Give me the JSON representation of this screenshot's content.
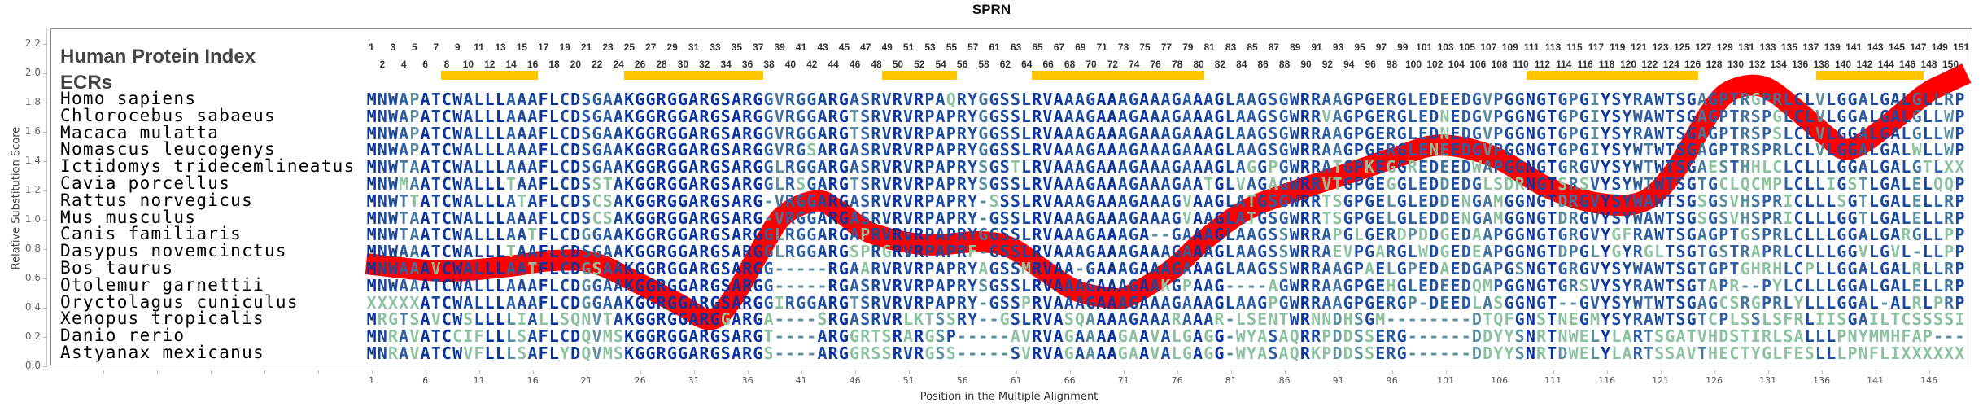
{
  "title": "SPRN",
  "header": {
    "index_label": "Human Protein Index",
    "ecr_label": "ECRs"
  },
  "human_index": [
    1,
    2,
    3,
    4,
    5,
    6,
    7,
    8,
    9,
    10,
    11,
    12,
    13,
    14,
    15,
    16,
    17,
    18,
    19,
    20,
    21,
    22,
    23,
    24,
    25,
    26,
    27,
    28,
    29,
    30,
    31,
    32,
    33,
    34,
    35,
    36,
    37,
    38,
    39,
    40,
    41,
    42,
    43,
    44,
    45,
    46,
    47,
    48,
    49,
    50,
    51,
    52,
    53,
    54,
    55,
    56,
    57,
    58,
    61,
    62,
    63,
    64,
    65,
    66,
    67,
    68,
    69,
    70,
    71,
    72,
    73,
    74,
    75,
    76,
    77,
    78,
    79,
    80,
    81,
    82,
    83,
    84,
    85,
    86,
    87,
    88,
    89,
    90,
    91,
    92,
    93,
    94,
    95,
    96,
    97,
    98,
    99,
    100,
    101,
    102,
    103,
    104,
    105,
    106,
    107,
    108,
    109,
    110,
    111,
    112,
    113,
    114,
    115,
    116,
    117,
    118,
    119,
    120,
    121,
    122,
    123,
    124,
    125,
    126,
    127,
    128,
    129,
    130,
    131,
    132,
    133,
    134,
    135,
    136,
    137,
    138,
    139,
    140,
    141,
    142,
    143,
    144,
    145,
    146,
    147,
    148,
    149,
    150,
    151
  ],
  "ecrs": [
    [
      8,
      16
    ],
    [
      25,
      37
    ],
    [
      49,
      55
    ],
    [
      65,
      80
    ],
    [
      111,
      126
    ],
    [
      138,
      147
    ]
  ],
  "ecr_color": "#ffc600",
  "conservation_colors": [
    "#0833a0",
    "#1a49a0",
    "#2c5ea6",
    "#44769f",
    "#5b8fa0",
    "#8cc2a0"
  ],
  "species": [
    {
      "name": "Homo sapiens",
      "sequence": "MNWAPATCWALLLAAAFLCDSGAAKGGRGGARGSARGGVRGGARGASRVRVRPAQRYGGSSLRVAAAGAAAGAAAGAAAGLAAGSGWRRAAGPGERGLEDEEDGVPGGNGTGPGIYSYRAWTSGAGPTRGPRLCLVLGGALGALGLLRP"
    },
    {
      "name": "Chlorocebus sabaeus",
      "sequence": "MNWAPATCWALLLAAAFLCDSGAAKGGRGGARGSARGGVRGGARGTSRVRVRPAPRYGGSSLRVAAAGAAAGAAAGAAAGLAAGSGWRRVAGPGERGLEDNEDGVPGGNGTGPGIYSYWAWTSGAGPTRSPGLCLVLGGALGALGLLWP"
    },
    {
      "name": "Macaca mulatta",
      "sequence": "MNWAPATCWALLLAAAFLCDSGAAKGGRGGARGSARGGVRGGARGTSRVRVRPAPRYGGSSLRVAAAGAAAGAAAGAAAGLAAGSGWRRAAGPGERGLEDNEDGVPGGNGTGPGIYSYRAWTSGAGPTRSPSLCLVLGGALGALGLLWP"
    },
    {
      "name": "Nomascus leucogenys",
      "sequence": "MNWAPATCWALLLAAAFLCDSGAAKGGRGGARGSARGGVRGSARGASRVRVRPAPRYGGSSLRVAAAGAAAGAAAGAAAGLAAGSGWRRAAGPGERGLENEEDGVPGGNGTGPGIYSYWTWTSGAGPTRSPRLCLVLGGALGALWLLWP"
    },
    {
      "name": "Ictidomys tridecemlineatus",
      "sequence": "MNWTAATCWALLLAAAFLCDSGAAKGGRGGARGSARGGLRGGARGASRVRVRPAPRYSGSTLRVAAAGAAAGAAAGAAAGLAGGPGWRRATGPKEGGREDEEDWAPGGNGTGRGVYSYWTWTSGAESTHHLCLCLLLGGALGALGTLXX"
    },
    {
      "name": "Cavia porcellus",
      "sequence": "MNWMAATCWALLLTAAFLCDSSTAKGGRGGARGSARGGLRSGARGTSRVRVRPAPRYSGSSLRVAAAGAAAGAAAGAATGLVAGAGWRRVTGPGEGGLEDDEDGLSDRNGTSRSVYSYWTWTSGTGCLQCMPLCLLIGSTLGALELQQP"
    },
    {
      "name": "Rattus norvegicus",
      "sequence": "MNWTTATCWALLLATAFLCDSCSAKGGRGGARGSARG-VRGGARGASRVRVRPAPRY-SSSLRVAAAGAAAGAAAGVAAGLATGSGWRRTSGPGELGLEDDENGAMGGNGTDRGVYSYWAWTSGSGSVHSPRICLLLSGTLGALELLRP"
    },
    {
      "name": "Mus musculus",
      "sequence": "MNWTAATCWALLLAAAFLCDSCSAKGGRGGARGSARG-VRGGARGASRVRVRPAPRY-GSSLRVAAAGAAAGAAAGVAAGLATGSGWRRTSGPGELGLEDDENGAMGGNGTDRGVYSYWAWTSGSGSVHSPRICLLLGGTLGALELLRP"
    },
    {
      "name": "Canis familiaris",
      "sequence": "MNWTAATCWALLLAATFLCDGGAAKGGRGGARGSARGGLRGGARGAPRVRVRPAPRYGGSSLRVAAAGAAAGA--GAAAGLAAGSSWRRAPGLGERDPDDGEDAAPGGNGTGRGVYGFRAWTSGAGPTGSPRLCLLLGGALGARGLLPP"
    },
    {
      "name": "Dasypus novemcinctus",
      "sequence": "MNWAAATCWALLLTAAFLCDSGAAKGGRGGARGSARGGLRGGARGSPRGRVRPAPRF-GSSLRVAAAGAAAGAAAGAAAGLAAGSSWRRAEVPGARGLWDGEDEAPGGNGTDPGLYGYRGLTSGTGSTRAPRLCLLLGGVLGVL-LLPP"
    },
    {
      "name": "Bos taurus",
      "sequence": "MNWAAAVCWALLLAATFLCDGSAAKGGRGGARGSARGG-----RGAARVRVRPAPRYAGSSMRVAA-GAAAGAAAGAAAGLAAGSSWRRAAGPAELGPEDAEDGAPGSNGTGRGVYSYWAWTSGTGPTGHRHLCPLLGGALGALRLLRP"
    },
    {
      "name": "Otolemur garnettii",
      "sequence": "MNWAAATCWALLLAAAFLCDGGAAKGGRGGARGSARGG-----RGASRVRVRPAPRYSGSSLRVAAAGAAAGAAKGPAAG----AGWRRAAGPGEHGLEDEEDQMPGGNGTGRSVYSYRAWTSGTAPR--PYLCLLLGGALGALELLRP"
    },
    {
      "name": "Oryctolagus cuniculus",
      "sequence": "XXXXXATCWALLLAAAFLCDGGAAKGGRGGARGSARGGIRGGARGTSRVRVRPAPRY-GSSPRVAAAGAAAGAAAGAAAGLAAGPGWRRAAGPGERGP-DEEDLASGGNGT--GVYSYWTWTSGAGCSRGPRLYLLLGGAL-ALRLPRP"
    },
    {
      "name": "Xenopus tropicalis",
      "sequence": "MRGTSAVCWSLLLLIALLSQNVTAKGGRGGARGGARGA----SRGASRVRLKTSSRY--GSLRVASQAAAAGAAARAAAR-LSENTWRNNDHSGM--------DTQFGNSTNEGMYSYRAWTSGTCPLSSLSFRLIISGAILTCSSSSI"
    },
    {
      "name": "Danio rerio",
      "sequence": "MNRAVATCCIFLLLSAFLCDQVMSKGGRGGARGSARGT----ARGGRTSRARGSP-----AVRVAGAAAAGAAVALGAGG-WYASAQRRPDDSSERG------DDYYSNRTNWELYLARTSGATVHDSTIRLSALLLPNYMMHFAP---"
    },
    {
      "name": "Astyanax mexicanus",
      "sequence": "MNRAVATCWVFLLLSAFLYDQVMSKGGRGGARGSARGS----ARGGRSSRVRGSS-----SVRVAGAAAAGAAVALGAGG-WYASAQRKPDDSSERG------DDYYSNRTDWELYLARTSSAVTHECTYGLFESLLLPNFLIXXXXXX"
    }
  ],
  "chart_data": {
    "type": "line",
    "xlabel": "Position in the Multiple Alignment",
    "ylabel": "Relative Substitution Score",
    "ylim": [
      0,
      2.2
    ],
    "yticks": [
      "0.0",
      "0.2",
      "0.4",
      "0.6",
      "0.8",
      "1.0",
      "1.2",
      "1.4",
      "1.6",
      "1.8",
      "2.0",
      "2.2"
    ],
    "xticks": [
      1,
      6,
      11,
      16,
      21,
      26,
      31,
      36,
      41,
      46,
      51,
      56,
      61,
      66,
      71,
      76,
      81,
      86,
      91,
      96,
      101,
      106,
      111,
      116,
      121,
      126,
      131,
      136,
      141,
      146
    ],
    "grid": false,
    "series": [
      {
        "color": "#ff0000",
        "x": [
          1,
          8,
          14,
          18,
          22,
          26,
          30,
          33,
          35,
          38,
          40,
          43,
          45,
          48,
          53,
          58,
          61,
          64,
          67,
          70,
          72,
          76,
          79,
          83,
          88,
          93,
          97,
          101,
          106,
          111,
          116,
          120,
          123,
          126,
          128,
          131,
          134,
          137,
          139,
          142,
          146,
          148,
          150
        ],
        "y": [
          0.7,
          0.65,
          0.68,
          0.72,
          0.71,
          0.58,
          0.43,
          0.32,
          0.45,
          0.83,
          1.04,
          1.13,
          1.06,
          0.91,
          0.83,
          0.85,
          0.81,
          0.66,
          0.52,
          0.47,
          0.48,
          0.66,
          0.86,
          1.07,
          1.21,
          1.33,
          1.43,
          1.51,
          1.43,
          1.22,
          1.11,
          1.13,
          1.35,
          1.72,
          1.88,
          1.91,
          1.76,
          1.57,
          1.48,
          1.61,
          1.85,
          1.93,
          2.0
        ]
      }
    ]
  }
}
